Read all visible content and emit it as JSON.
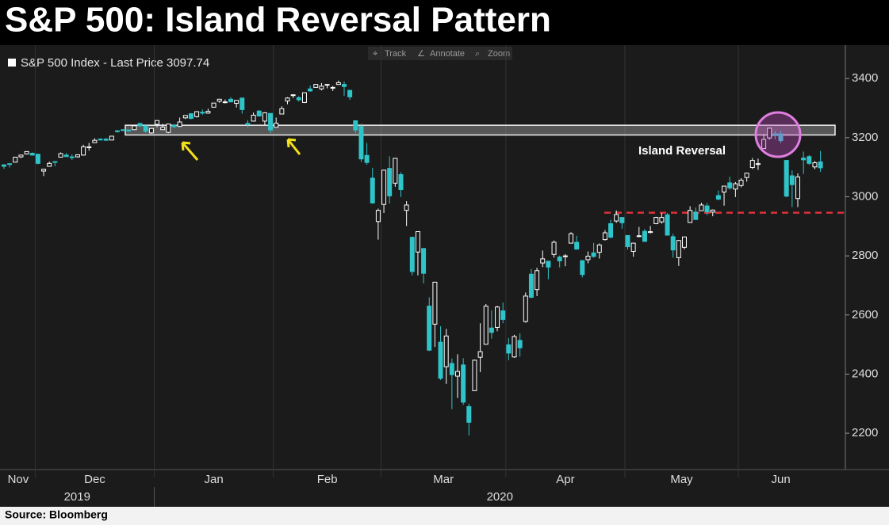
{
  "chart_data": {
    "type": "candlestick",
    "title": "S&P 500: Island Reversal Pattern",
    "source": "Source: Bloomberg",
    "toolbar": [
      "Track",
      "Annotate",
      "Zoom"
    ],
    "annotation": "Island Reversal",
    "categories": [
      "Nov",
      null,
      null,
      null,
      null,
      null,
      "Dec",
      null,
      null,
      null,
      null,
      null,
      null,
      null,
      null,
      null,
      null,
      null,
      null,
      null,
      null,
      null,
      null,
      null,
      null,
      null,
      null,
      "Jan",
      null,
      null,
      null,
      null,
      null,
      null,
      null,
      null,
      null,
      null,
      null,
      null,
      null,
      null,
      null,
      null,
      null,
      null,
      null,
      null,
      "Feb",
      null,
      null,
      null,
      null,
      null,
      null,
      null,
      null,
      null,
      null,
      null,
      null,
      null,
      null,
      null,
      null,
      null,
      null,
      "Mar",
      null,
      null,
      null,
      null,
      null,
      null,
      null,
      null,
      null,
      null,
      null,
      null,
      null,
      null,
      null,
      null,
      null,
      null,
      null,
      null,
      null,
      "Apr",
      null,
      null,
      null,
      null,
      null,
      null,
      null,
      null,
      null,
      null,
      null,
      null,
      null,
      null,
      null,
      null,
      null,
      null,
      null,
      null,
      "May",
      null,
      null,
      null,
      null,
      null,
      null,
      null,
      null,
      null,
      null,
      null,
      null,
      null,
      null,
      null,
      null,
      null,
      null,
      null,
      "Jun",
      null,
      null,
      null,
      null,
      null,
      null,
      null,
      null,
      null,
      null,
      null,
      null,
      null,
      null
    ],
    "years": [
      "2019",
      "2020"
    ],
    "series": [
      {
        "name": "S&P 500 Index - Last Price 3097.74",
        "up_color": "#ffffff",
        "down_color": "#2ec4c9",
        "open": [
          3108,
          3112,
          3117,
          3135,
          3145,
          3147,
          3144,
          3087,
          3103,
          3119,
          3134,
          3141,
          3135,
          3135,
          3141,
          3166,
          3183,
          3195,
          3195,
          3192,
          3223,
          3227,
          3226,
          3227,
          3248,
          3240,
          3216,
          3245,
          3227,
          3218,
          3242,
          3238,
          3267,
          3281,
          3271,
          3286,
          3283,
          3303,
          3323,
          3321,
          3330,
          3316,
          3334,
          3248,
          3256,
          3290,
          3256,
          3282,
          3235,
          3280,
          3324,
          3344,
          3335,
          3319,
          3365,
          3370,
          3365,
          3378,
          3369,
          3380,
          3380,
          3360,
          3257,
          3238,
          3140,
          3063,
          2916,
          2974,
          3096,
          3046,
          3075,
          2954,
          2863,
          2813,
          2825,
          2630,
          2569,
          2508,
          2425,
          2436,
          2393,
          2431,
          2290,
          2344,
          2457,
          2501,
          2556,
          2558,
          2614,
          2499,
          2458,
          2514,
          2578,
          2738,
          2686,
          2776,
          2782,
          2805,
          2796,
          2799,
          2843,
          2846,
          2784,
          2787,
          2810,
          2812,
          2855,
          2909,
          2918,
          2930,
          2869,
          2815,
          2868,
          2883,
          2879,
          2909,
          2915,
          2939,
          2865,
          2794,
          2829,
          2913,
          2948,
          2953,
          2969,
          2948,
          3004,
          3016,
          3047,
          3026,
          3038,
          3065,
          3099,
          3112,
          3163,
          3199,
          3213,
          3213,
          3123,
          3071,
          2994,
          3131,
          3136,
          3101,
          3118
        ],
        "high": [
          3110,
          3112,
          3134,
          3142,
          3154,
          3150,
          3144,
          3095,
          3119,
          3120,
          3150,
          3148,
          3143,
          3143,
          3176,
          3182,
          3198,
          3198,
          3199,
          3205,
          3226,
          3227,
          3226,
          3240,
          3248,
          3240,
          3232,
          3258,
          3247,
          3246,
          3245,
          3268,
          3275,
          3283,
          3288,
          3295,
          3298,
          3317,
          3330,
          3329,
          3337,
          3326,
          3334,
          3259,
          3285,
          3293,
          3286,
          3282,
          3268,
          3306,
          3337,
          3347,
          3341,
          3352,
          3376,
          3381,
          3385,
          3380,
          3375,
          3393,
          3390,
          3360,
          3259,
          3247,
          3182,
          3098,
          2960,
          3090,
          3137,
          3130,
          3083,
          2985,
          2863,
          2882,
          2825,
          2660,
          2711,
          2562,
          2553,
          2453,
          2467,
          2454,
          2300,
          2449,
          2572,
          2637,
          2616,
          2631,
          2642,
          2522,
          2533,
          2538,
          2676,
          2756,
          2760,
          2818,
          2782,
          2852,
          2801,
          2806,
          2880,
          2868,
          2785,
          2815,
          2844,
          2842,
          2887,
          2922,
          2954,
          2930,
          2869,
          2844,
          2898,
          2891,
          2901,
          2932,
          2945,
          2945,
          2875,
          2853,
          2865,
          2968,
          2964,
          2980,
          2979,
          2957,
          3021,
          3036,
          3068,
          3050,
          3063,
          3081,
          3131,
          3129,
          3212,
          3232,
          3222,
          3223,
          3123,
          3089,
          3079,
          3153,
          3141,
          3121,
          3155
        ],
        "low": [
          3094,
          3099,
          3117,
          3131,
          3143,
          3139,
          3110,
          3070,
          3102,
          3103,
          3134,
          3135,
          3125,
          3133,
          3139,
          3156,
          3183,
          3191,
          3191,
          3192,
          3217,
          3222,
          3220,
          3227,
          3235,
          3216,
          3213,
          3235,
          3227,
          3215,
          3233,
          3236,
          3263,
          3262,
          3268,
          3277,
          3281,
          3302,
          3318,
          3316,
          3320,
          3302,
          3281,
          3235,
          3255,
          3272,
          3242,
          3215,
          3235,
          3280,
          3313,
          3334,
          3322,
          3317,
          3355,
          3370,
          3360,
          3367,
          3358,
          3378,
          3342,
          3328,
          3215,
          3118,
          3108,
          2977,
          2855,
          2945,
          2977,
          3034,
          2999,
          2901,
          2734,
          2734,
          2707,
          2478,
          2492,
          2380,
          2367,
          2281,
          2319,
          2296,
          2192,
          2344,
          2407,
          2500,
          2520,
          2545,
          2572,
          2447,
          2455,
          2459,
          2574,
          2657,
          2664,
          2762,
          2721,
          2794,
          2761,
          2765,
          2843,
          2821,
          2727,
          2775,
          2794,
          2791,
          2852,
          2860,
          2912,
          2892,
          2821,
          2797,
          2863,
          2848,
          2876,
          2907,
          2909,
          2869,
          2794,
          2766,
          2822,
          2913,
          2922,
          2953,
          2938,
          2934,
          2988,
          2970,
          3024,
          2999,
          3032,
          3051,
          3094,
          3091,
          3163,
          3193,
          3194,
          3181,
          2999,
          2965,
          2965,
          3077,
          3108,
          3093,
          3084
        ],
        "close": [
          3103,
          3110,
          3134,
          3141,
          3153,
          3141,
          3113,
          3093,
          3113,
          3117,
          3146,
          3136,
          3133,
          3142,
          3169,
          3169,
          3191,
          3192,
          3191,
          3205,
          3221,
          3224,
          3223,
          3240,
          3240,
          3222,
          3231,
          3258,
          3235,
          3246,
          3237,
          3253,
          3275,
          3265,
          3288,
          3283,
          3289,
          3317,
          3330,
          3321,
          3321,
          3326,
          3295,
          3244,
          3276,
          3273,
          3284,
          3226,
          3249,
          3298,
          3334,
          3345,
          3328,
          3352,
          3358,
          3380,
          3374,
          3380,
          3370,
          3386,
          3373,
          3338,
          3226,
          3128,
          3116,
          2979,
          2954,
          3090,
          3003,
          3130,
          3024,
          2972,
          2747,
          2882,
          2741,
          2481,
          2711,
          2386,
          2529,
          2398,
          2409,
          2305,
          2237,
          2447,
          2476,
          2630,
          2541,
          2627,
          2585,
          2471,
          2527,
          2489,
          2664,
          2660,
          2750,
          2790,
          2762,
          2846,
          2783,
          2800,
          2875,
          2823,
          2737,
          2799,
          2798,
          2837,
          2878,
          2863,
          2940,
          2912,
          2831,
          2843,
          2868,
          2849,
          2882,
          2930,
          2930,
          2870,
          2820,
          2852,
          2864,
          2954,
          2923,
          2972,
          2949,
          2955,
          2992,
          3036,
          3030,
          3044,
          3056,
          3080,
          3123,
          3112,
          3194,
          3232,
          3207,
          3190,
          3002,
          3041,
          3067,
          3125,
          3113,
          3115,
          3098
        ]
      }
    ],
    "resistance_band": [
      3209,
      3242
    ],
    "support_level": 2946,
    "ylim": [
      2077,
      3513
    ],
    "yticks": [
      2200,
      2400,
      2600,
      2800,
      3000,
      3200,
      3400
    ]
  }
}
